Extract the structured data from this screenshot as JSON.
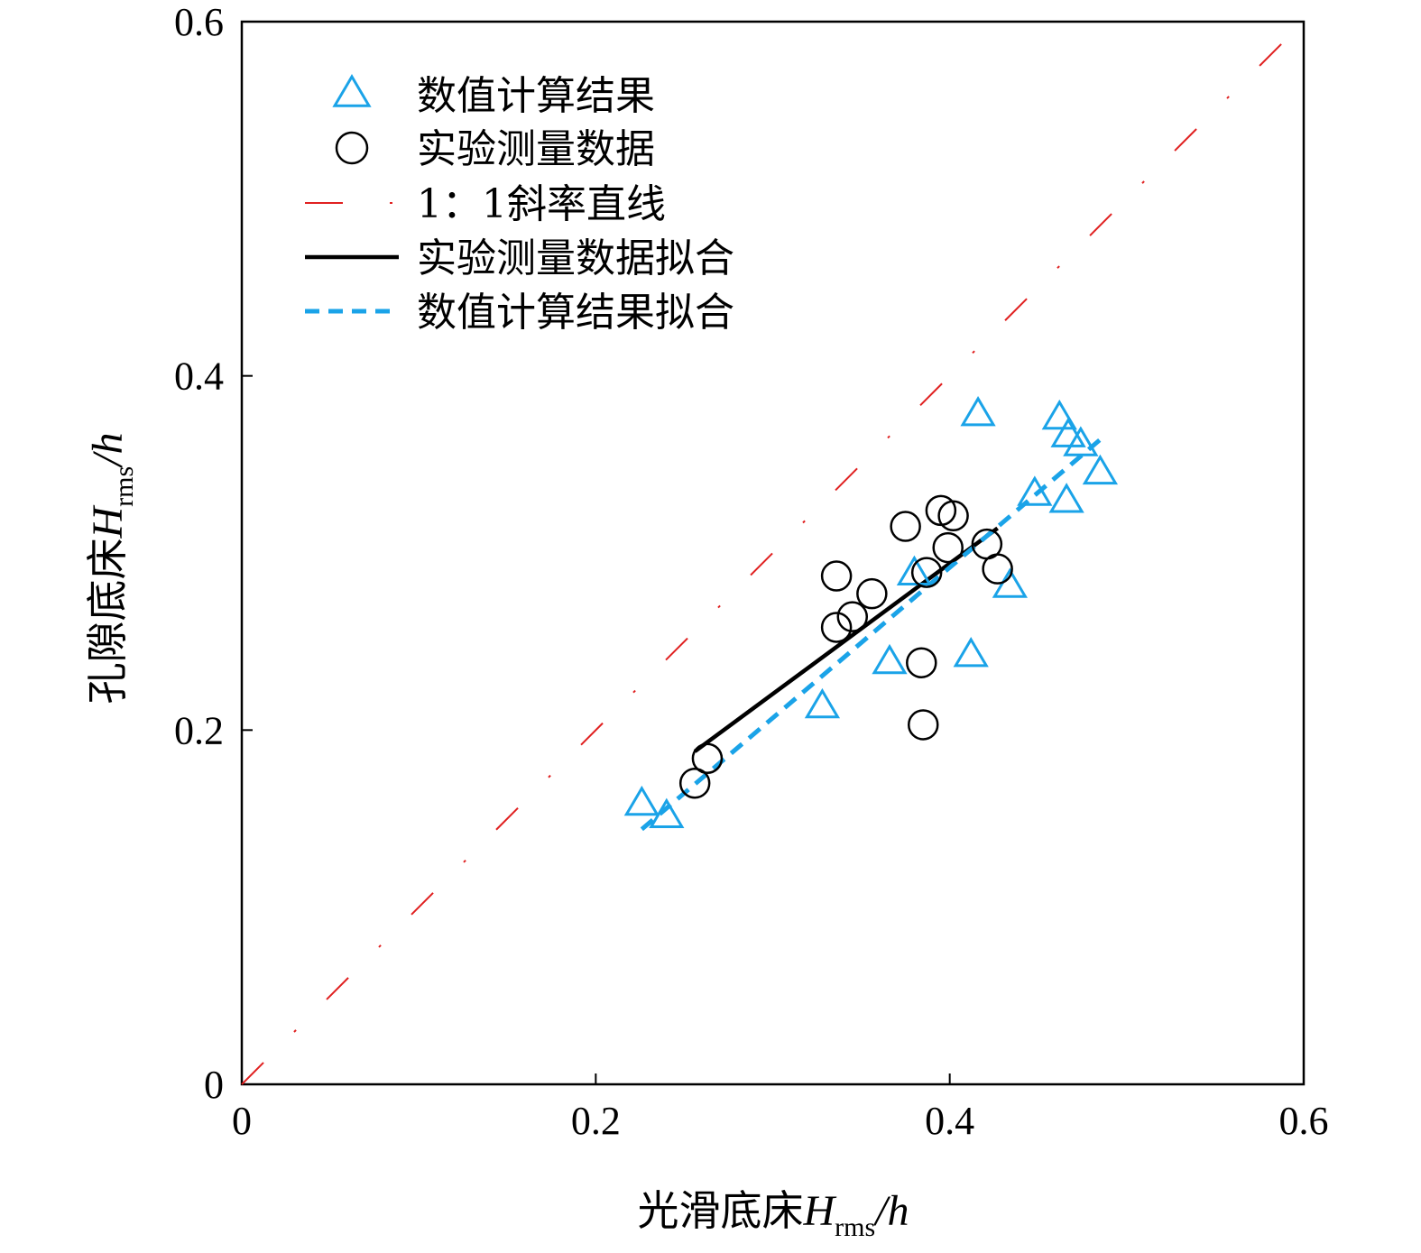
{
  "chart_data": {
    "type": "scatter",
    "title": "",
    "xlabel": {
      "prefix": "光滑底床",
      "var": "H",
      "sub": "rms",
      "suffix": "/h"
    },
    "ylabel": {
      "prefix": "孔隙底床",
      "var": "H",
      "sub": "rms",
      "suffix": "/h"
    },
    "xlim": [
      0,
      0.6
    ],
    "ylim": [
      0,
      0.6
    ],
    "xticks": [
      0,
      0.2,
      0.4,
      0.6
    ],
    "yticks": [
      0,
      0.2,
      0.4,
      0.6
    ],
    "xtick_labels": [
      "0",
      "0.2",
      "0.4",
      "0.6"
    ],
    "ytick_labels": [
      "0",
      "0.2",
      "0.4",
      "0.6"
    ],
    "grid": false,
    "legend_position": "top-left",
    "series": [
      {
        "name": "数值计算结果",
        "kind": "scatter",
        "marker": "triangle",
        "color": "#1aa3e8",
        "points": [
          [
            0.226,
            0.158
          ],
          [
            0.24,
            0.151
          ],
          [
            0.328,
            0.213
          ],
          [
            0.366,
            0.238
          ],
          [
            0.38,
            0.288
          ],
          [
            0.412,
            0.242
          ],
          [
            0.416,
            0.378
          ],
          [
            0.434,
            0.281
          ],
          [
            0.448,
            0.333
          ],
          [
            0.462,
            0.376
          ],
          [
            0.466,
            0.329
          ],
          [
            0.467,
            0.366
          ],
          [
            0.474,
            0.361
          ],
          [
            0.485,
            0.345
          ]
        ]
      },
      {
        "name": "实验测量数据",
        "kind": "scatter",
        "marker": "circle",
        "color": "#000000",
        "points": [
          [
            0.256,
            0.17
          ],
          [
            0.263,
            0.184
          ],
          [
            0.336,
            0.287
          ],
          [
            0.336,
            0.258
          ],
          [
            0.345,
            0.264
          ],
          [
            0.356,
            0.277
          ],
          [
            0.375,
            0.315
          ],
          [
            0.384,
            0.238
          ],
          [
            0.385,
            0.203
          ],
          [
            0.387,
            0.289
          ],
          [
            0.395,
            0.324
          ],
          [
            0.402,
            0.321
          ],
          [
            0.399,
            0.303
          ],
          [
            0.421,
            0.305
          ],
          [
            0.427,
            0.291
          ]
        ]
      },
      {
        "name": "1：1斜率直线",
        "kind": "line",
        "style": "dash-dot",
        "color": "#e02020",
        "points": [
          [
            0,
            0
          ],
          [
            0.6,
            0.6
          ]
        ]
      },
      {
        "name": "实验测量数据拟合",
        "kind": "line",
        "style": "solid",
        "color": "#000000",
        "points": [
          [
            0.256,
            0.188
          ],
          [
            0.427,
            0.314
          ]
        ]
      },
      {
        "name": "数值计算结果拟合",
        "kind": "line",
        "style": "dashed",
        "color": "#1aa3e8",
        "points": [
          [
            0.226,
            0.144
          ],
          [
            0.485,
            0.364
          ]
        ]
      }
    ]
  }
}
